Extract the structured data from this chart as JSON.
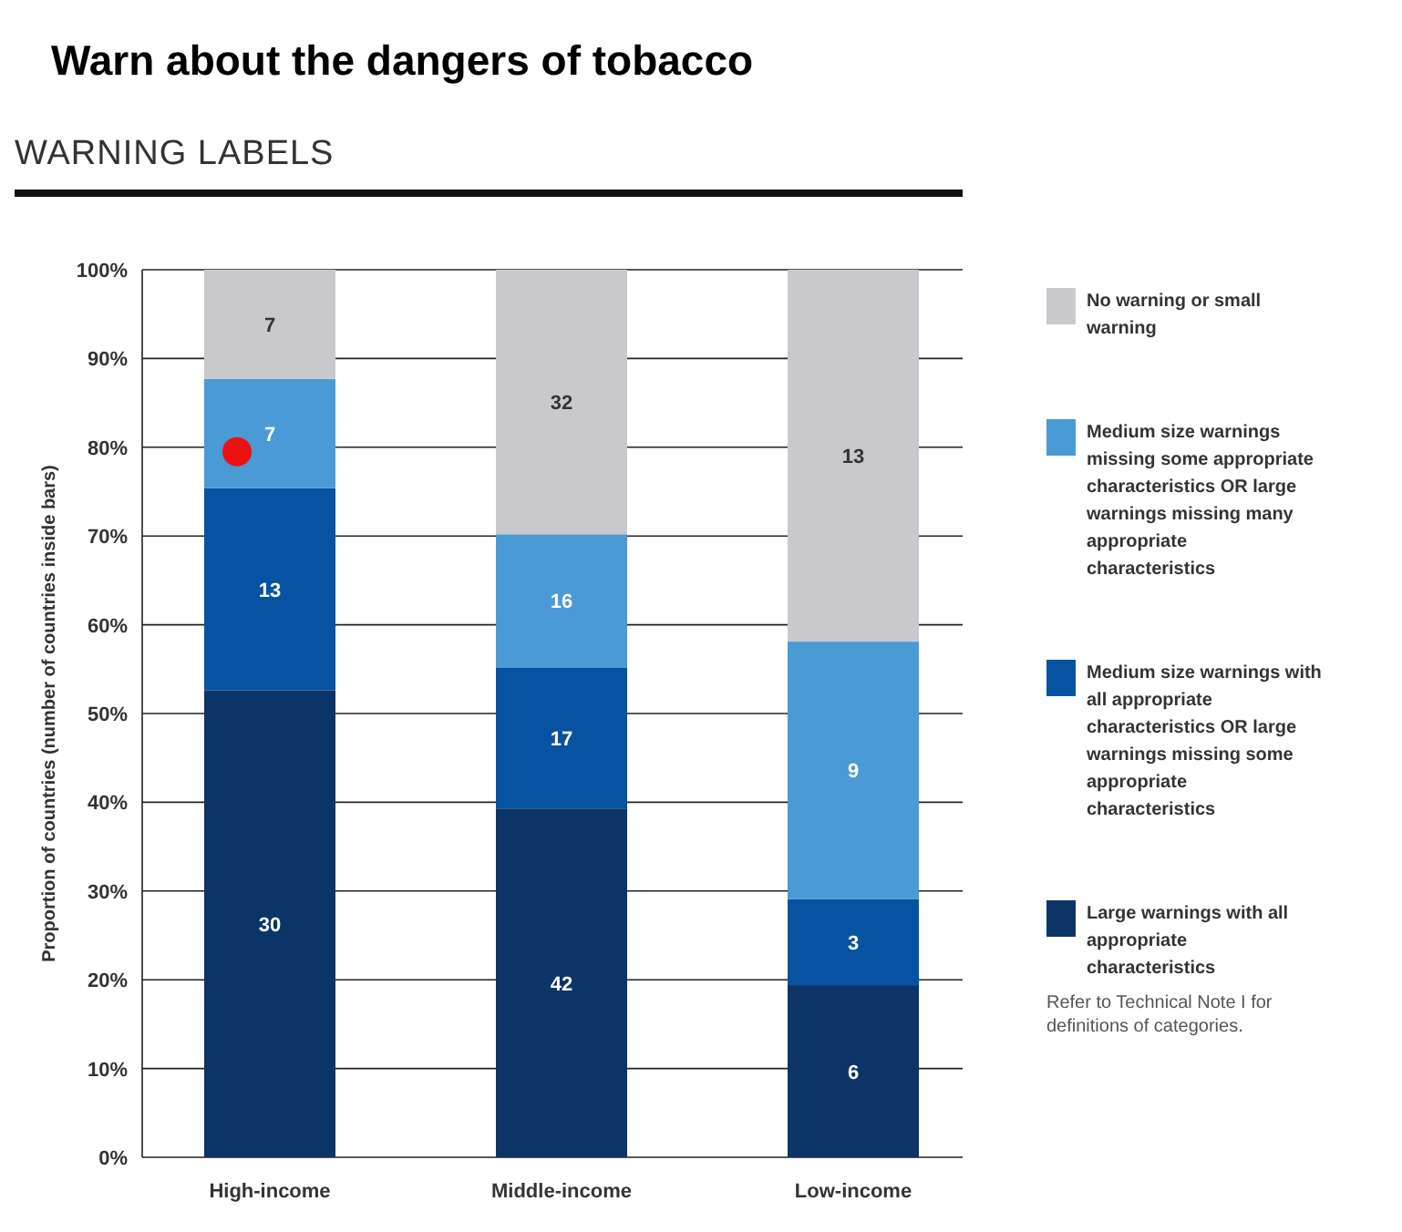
{
  "chart_data": {
    "type": "bar",
    "stacked": true,
    "title": "Warn about the dangers of tobacco",
    "subtitle": "WARNING LABELS",
    "ylabel": "Proportion of countries (number of countries inside bars)",
    "categories": [
      "High-income",
      "Middle-income",
      "Low-income"
    ],
    "series": [
      {
        "name": "Large warnings with all appropriate characteristics",
        "color": "#0b3566",
        "values": [
          52.6,
          39.3,
          19.4
        ]
      },
      {
        "name": "Medium size warnings with all appropriate characteristics OR large warnings missing some appropriate characteristics",
        "color": "#0752a1",
        "values": [
          22.8,
          15.9,
          9.7
        ]
      },
      {
        "name": "Medium size warnings missing some appropriate characteristics OR large warnings missing many appropriate characteristics",
        "color": "#4a9ad6",
        "values": [
          12.3,
          15.0,
          29.0
        ]
      },
      {
        "name": "No warning or small warning",
        "color": "#c9c9cd",
        "values": [
          12.3,
          29.8,
          41.9
        ]
      }
    ],
    "ylim": [
      0,
      100
    ],
    "yticks": [
      {
        "value": 0,
        "label": "0%"
      },
      {
        "value": 10,
        "label": "10%"
      },
      {
        "value": 20,
        "label": "20%"
      },
      {
        "value": 30,
        "label": "30%"
      },
      {
        "value": 40,
        "label": "40%"
      },
      {
        "value": 50,
        "label": "50%"
      },
      {
        "value": 60,
        "label": "60%"
      },
      {
        "value": 70,
        "label": "70%"
      },
      {
        "value": 80,
        "label": "80%"
      },
      {
        "value": 90,
        "label": "90%"
      },
      {
        "value": 100,
        "label": "100%"
      }
    ],
    "grid": "y",
    "legend": "right",
    "annotations": [
      "30",
      "13",
      "7",
      "7",
      "42",
      "17",
      "16",
      "32",
      "6",
      "3",
      "9",
      "13",
      "Refer to Technical Note I for definitions of categories."
    ]
  }
}
